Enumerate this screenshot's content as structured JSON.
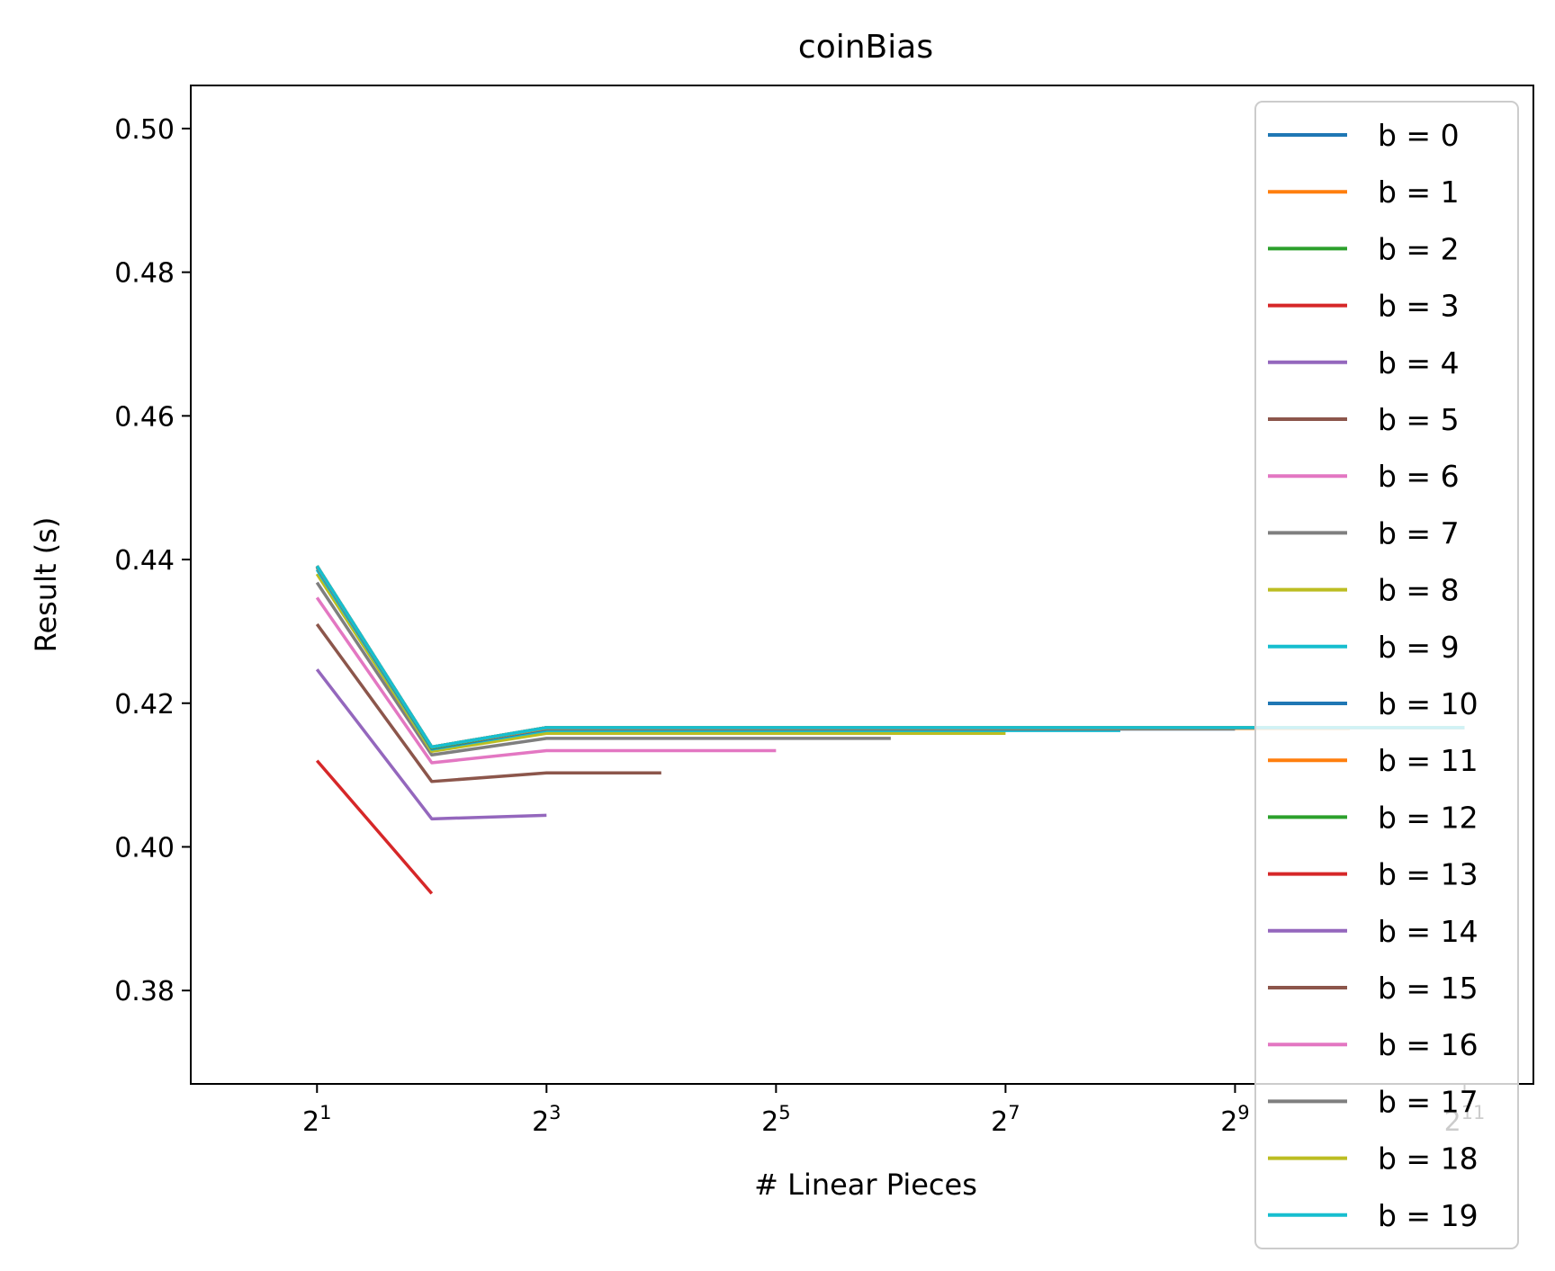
{
  "chart_data": {
    "type": "line",
    "title": "coinBias",
    "xlabel": "# Linear Pieces",
    "ylabel": "Result (s)",
    "x_scale": "log2",
    "xlim_exponent": [
      -0.1,
      11.6
    ],
    "ylim": [
      0.367,
      0.506
    ],
    "x_ticks": [
      {
        "base": "2",
        "exp": "1",
        "value": 2
      },
      {
        "base": "2",
        "exp": "3",
        "value": 8
      },
      {
        "base": "2",
        "exp": "5",
        "value": 32
      },
      {
        "base": "2",
        "exp": "7",
        "value": 128
      },
      {
        "base": "2",
        "exp": "9",
        "value": 512
      },
      {
        "base": "2",
        "exp": "11",
        "value": 2048
      }
    ],
    "y_ticks": [
      {
        "label": "0.38",
        "value": 0.38
      },
      {
        "label": "0.40",
        "value": 0.4
      },
      {
        "label": "0.42",
        "value": 0.42
      },
      {
        "label": "0.44",
        "value": 0.44
      },
      {
        "label": "0.46",
        "value": 0.46
      },
      {
        "label": "0.48",
        "value": 0.48
      },
      {
        "label": "0.50",
        "value": 0.5
      }
    ],
    "legend_position": "right",
    "series": [
      {
        "name": "b = 0",
        "color": "#1f77b4",
        "x": [],
        "y": []
      },
      {
        "name": "b = 1",
        "color": "#ff7f0e",
        "x": [],
        "y": []
      },
      {
        "name": "b = 2",
        "color": "#2ca02c",
        "x": [],
        "y": []
      },
      {
        "name": "b = 3",
        "color": "#d62728",
        "x": [
          2,
          4
        ],
        "y": [
          0.412,
          0.3935
        ]
      },
      {
        "name": "b = 4",
        "color": "#9467bd",
        "x": [
          2,
          4,
          8
        ],
        "y": [
          0.4247,
          0.4039,
          0.4044
        ]
      },
      {
        "name": "b = 5",
        "color": "#8c564b",
        "x": [
          2,
          4,
          8,
          16
        ],
        "y": [
          0.431,
          0.4091,
          0.4103,
          0.4103
        ]
      },
      {
        "name": "b = 6",
        "color": "#e377c2",
        "x": [
          2,
          4,
          8,
          16,
          32
        ],
        "y": [
          0.4347,
          0.4117,
          0.4134,
          0.4134,
          0.4134
        ]
      },
      {
        "name": "b = 7",
        "color": "#7f7f7f",
        "x": [
          2,
          4,
          8,
          16,
          32,
          64
        ],
        "y": [
          0.4368,
          0.4128,
          0.4151,
          0.4151,
          0.4151,
          0.4151
        ]
      },
      {
        "name": "b = 8",
        "color": "#bcbd22",
        "x": [
          2,
          4,
          8,
          16,
          32,
          64,
          128
        ],
        "y": [
          0.438,
          0.4133,
          0.4158,
          0.4158,
          0.4158,
          0.4158,
          0.4158
        ]
      },
      {
        "name": "b = 9",
        "color": "#17becf",
        "x": [
          2,
          4,
          8,
          16,
          32,
          64,
          128,
          256
        ],
        "y": [
          0.4386,
          0.4136,
          0.4162,
          0.4162,
          0.4162,
          0.4162,
          0.4162,
          0.4162
        ]
      },
      {
        "name": "b = 10",
        "color": "#1f77b4",
        "x": [
          2,
          4,
          8,
          16,
          32,
          64,
          128,
          256,
          512
        ],
        "y": [
          0.4389,
          0.4137,
          0.4164,
          0.4164,
          0.4164,
          0.4164,
          0.4164,
          0.4164,
          0.4164
        ]
      },
      {
        "name": "b = 11",
        "color": "#ff7f0e",
        "x": [
          2,
          4,
          8,
          16,
          32,
          64,
          128,
          256,
          512,
          1024
        ],
        "y": [
          0.439,
          0.4138,
          0.4165,
          0.4165,
          0.4165,
          0.4165,
          0.4165,
          0.4165,
          0.4165,
          0.4165
        ]
      },
      {
        "name": "b = 12",
        "color": "#2ca02c",
        "x": [
          2,
          4,
          8,
          16,
          32,
          64,
          128,
          256,
          512,
          1024,
          2048
        ],
        "y": [
          0.4391,
          0.4138,
          0.4166,
          0.4166,
          0.4166,
          0.4166,
          0.4166,
          0.4166,
          0.4166,
          0.4166,
          0.4166
        ]
      },
      {
        "name": "b = 13",
        "color": "#d62728",
        "x": [
          2,
          4,
          8,
          16,
          32,
          64,
          128,
          256,
          512,
          1024,
          2048
        ],
        "y": [
          0.4391,
          0.4139,
          0.4166,
          0.4166,
          0.4166,
          0.4166,
          0.4166,
          0.4166,
          0.4166,
          0.4166,
          0.4166
        ]
      },
      {
        "name": "b = 14",
        "color": "#9467bd",
        "x": [
          2,
          4,
          8,
          16,
          32,
          64,
          128,
          256,
          512,
          1024,
          2048
        ],
        "y": [
          0.4391,
          0.4139,
          0.4166,
          0.4166,
          0.4166,
          0.4166,
          0.4166,
          0.4166,
          0.4166,
          0.4166,
          0.4166
        ]
      },
      {
        "name": "b = 15",
        "color": "#8c564b",
        "x": [
          2,
          4,
          8,
          16,
          32,
          64,
          128,
          256,
          512,
          1024,
          2048
        ],
        "y": [
          0.4391,
          0.4139,
          0.4166,
          0.4166,
          0.4166,
          0.4166,
          0.4166,
          0.4166,
          0.4166,
          0.4166,
          0.4166
        ]
      },
      {
        "name": "b = 16",
        "color": "#e377c2",
        "x": [
          2,
          4,
          8,
          16,
          32,
          64,
          128,
          256,
          512,
          1024,
          2048
        ],
        "y": [
          0.4391,
          0.4139,
          0.4166,
          0.4166,
          0.4166,
          0.4166,
          0.4166,
          0.4166,
          0.4166,
          0.4166,
          0.4166
        ]
      },
      {
        "name": "b = 17",
        "color": "#7f7f7f",
        "x": [
          2,
          4,
          8,
          16,
          32,
          64,
          128,
          256,
          512,
          1024,
          2048
        ],
        "y": [
          0.4391,
          0.4139,
          0.4166,
          0.4166,
          0.4166,
          0.4166,
          0.4166,
          0.4166,
          0.4166,
          0.4166,
          0.4166
        ]
      },
      {
        "name": "b = 18",
        "color": "#bcbd22",
        "x": [
          2,
          4,
          8,
          16,
          32,
          64,
          128,
          256,
          512,
          1024,
          2048
        ],
        "y": [
          0.4391,
          0.4139,
          0.4166,
          0.4166,
          0.4166,
          0.4166,
          0.4166,
          0.4166,
          0.4166,
          0.4166,
          0.4166
        ]
      },
      {
        "name": "b = 19",
        "color": "#17becf",
        "x": [
          2,
          4,
          8,
          16,
          32,
          64,
          128,
          256,
          512,
          1024,
          2048
        ],
        "y": [
          0.4391,
          0.4139,
          0.4166,
          0.4166,
          0.4166,
          0.4166,
          0.4166,
          0.4166,
          0.4166,
          0.4166,
          0.4166
        ]
      }
    ]
  }
}
